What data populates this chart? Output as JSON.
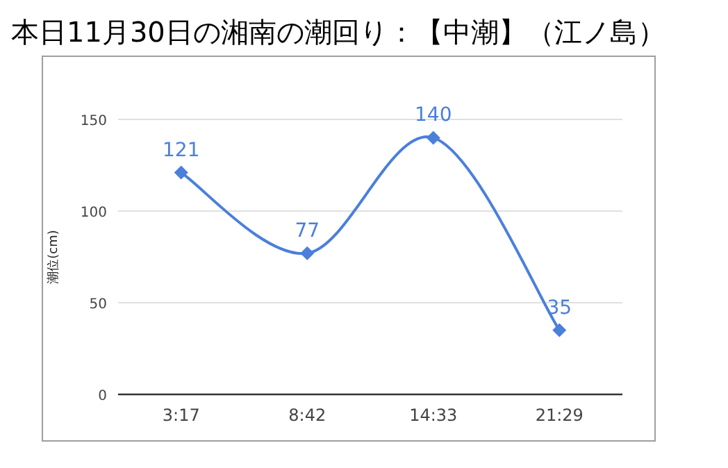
{
  "chart_data": {
    "type": "line",
    "title": "本日11月30日の湘南の潮回り：【中潮】（江ノ島）",
    "ylabel": "潮位(cm)",
    "categories": [
      "3:17",
      "8:42",
      "14:33",
      "21:29"
    ],
    "series": [
      {
        "color": "#4a7fdc",
        "values": [
          121,
          77,
          140,
          35
        ]
      }
    ],
    "ylim": [
      0,
      150
    ],
    "yticks": [
      0,
      50,
      100,
      150
    ],
    "grid": "y",
    "marker": "diamond",
    "data_labels": true
  }
}
